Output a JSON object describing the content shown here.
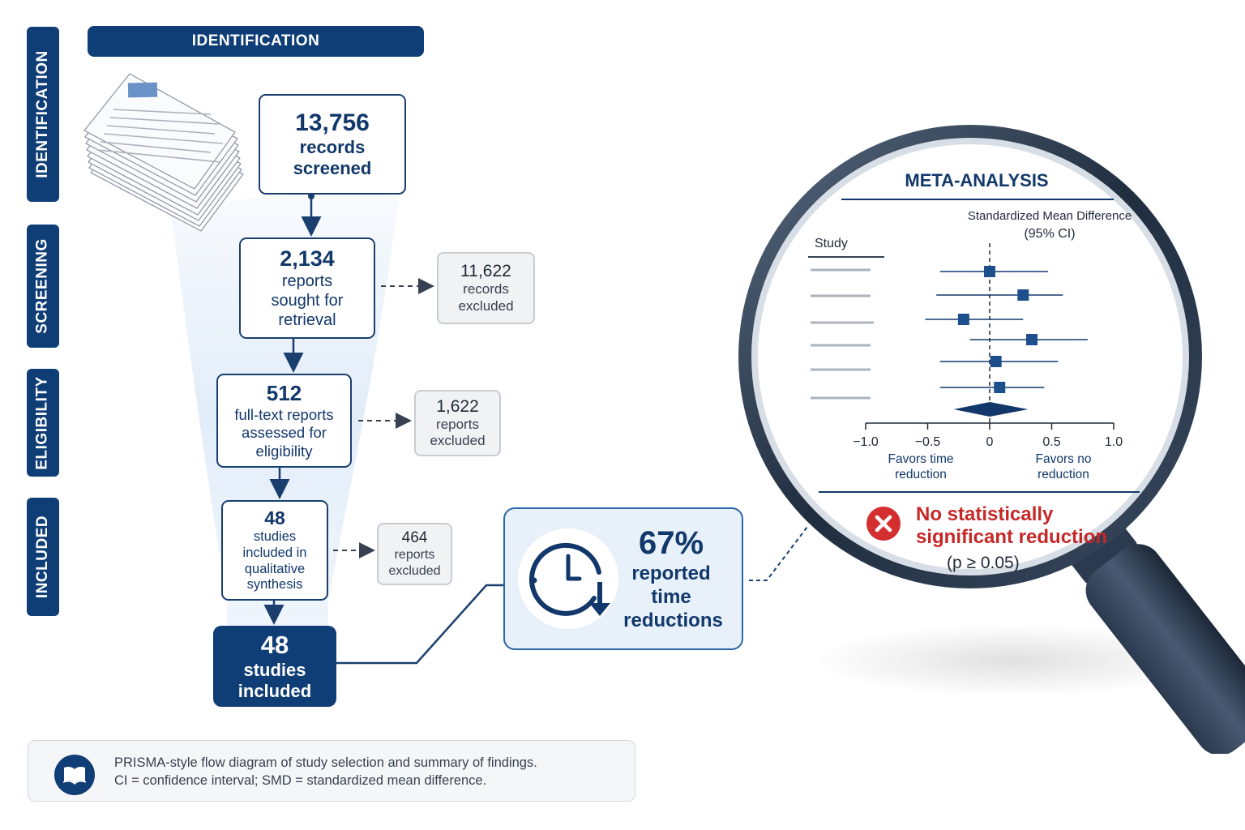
{
  "stages": {
    "identification": "IDENTIFICATION",
    "screening": "SCREENING",
    "eligibility": "ELIGIBILITY",
    "included": "INCLUDED"
  },
  "banner": "IDENTIFICATION",
  "flow": {
    "records": {
      "number": "13,756",
      "line1": "records",
      "line2": "screened"
    },
    "reports": {
      "number": "2,134",
      "line1": "reports",
      "line2": "sought for",
      "line3": "retrieval"
    },
    "fulltext": {
      "number": "512",
      "line1": "full-text reports",
      "line2": "assessed for",
      "line3": "eligibility"
    },
    "qualitative": {
      "number": "48",
      "line1": "studies",
      "line2": "included in",
      "line3": "qualitative",
      "line4": "synthesis"
    },
    "final": {
      "number": "48",
      "line1": "studies",
      "line2": "included"
    }
  },
  "excluded": {
    "e1": {
      "number": "11,622",
      "line1": "records",
      "line2": "excluded"
    },
    "e2": {
      "number": "1,622",
      "line1": "reports",
      "line2": "excluded"
    },
    "e3": {
      "number": "464",
      "line1": "reports",
      "line2": "excluded"
    }
  },
  "finding": {
    "percent": "67%",
    "line1": "reported",
    "line2": "time",
    "line3": "reductions"
  },
  "meta": {
    "title": "META-ANALYSIS",
    "measure_line1": "Standardized Mean Difference",
    "measure_line2": "(95% CI)",
    "study_header": "Study",
    "favors_left_1": "Favors time",
    "favors_left_2": "reduction",
    "favors_right_1": "Favors no",
    "favors_right_2": "reduction",
    "result_line1": "No statistically",
    "result_line2": "significant reduction",
    "p_value": "(p ≥ 0.05)"
  },
  "chart_data": {
    "type": "forest",
    "xlim": [
      -1.0,
      1.0
    ],
    "ticks": [
      "−1.0",
      "−0.5",
      "0",
      "0.5",
      "1.0"
    ],
    "tick_values": [
      -1.0,
      -0.5,
      0,
      0.5,
      1.0
    ],
    "studies": [
      {
        "estimate": 0.0,
        "lower": -0.4,
        "upper": 0.47
      },
      {
        "estimate": 0.27,
        "lower": -0.43,
        "upper": 0.59
      },
      {
        "estimate": -0.21,
        "lower": -0.52,
        "upper": 0.27
      },
      {
        "estimate": 0.34,
        "lower": -0.16,
        "upper": 0.79
      },
      {
        "estimate": 0.05,
        "lower": -0.4,
        "upper": 0.55
      },
      {
        "estimate": 0.08,
        "lower": -0.4,
        "upper": 0.44
      }
    ],
    "pooled": {
      "estimate": 0.0,
      "lower": -0.29,
      "upper": 0.31
    }
  },
  "caption": {
    "line1": "PRISMA-style flow diagram of study selection and summary of findings.",
    "line2": "CI = confidence interval; SMD = standardized mean difference."
  },
  "colors": {
    "navy": "#0f3d75",
    "accent_red": "#c62828",
    "light_blue": "#e8f1fa"
  }
}
